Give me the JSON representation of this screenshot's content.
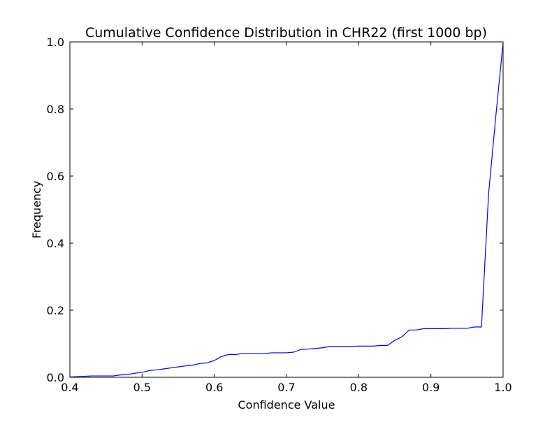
{
  "chart_data": {
    "type": "line",
    "title": "Cumulative Confidence Distribution in CHR22 (first 1000 bp)",
    "xlabel": "Confidence Value",
    "ylabel": "Frequency",
    "xlim": [
      0.4,
      1.0
    ],
    "ylim": [
      0.0,
      1.0
    ],
    "x_ticks": [
      "0.4",
      "0.5",
      "0.6",
      "0.7",
      "0.8",
      "0.9",
      "1.0"
    ],
    "y_ticks": [
      "0.0",
      "0.2",
      "0.4",
      "0.6",
      "0.8",
      "1.0"
    ],
    "grid": false,
    "series": [
      {
        "color": "#0000ff",
        "x": [
          0.4,
          0.41,
          0.42,
          0.43,
          0.44,
          0.45,
          0.46,
          0.47,
          0.48,
          0.49,
          0.5,
          0.51,
          0.52,
          0.53,
          0.54,
          0.55,
          0.56,
          0.57,
          0.58,
          0.59,
          0.6,
          0.61,
          0.62,
          0.63,
          0.64,
          0.65,
          0.66,
          0.67,
          0.68,
          0.69,
          0.7,
          0.71,
          0.72,
          0.73,
          0.74,
          0.75,
          0.76,
          0.77,
          0.78,
          0.79,
          0.8,
          0.81,
          0.82,
          0.83,
          0.84,
          0.85,
          0.86,
          0.87,
          0.88,
          0.89,
          0.9,
          0.91,
          0.92,
          0.93,
          0.94,
          0.95,
          0.96,
          0.97,
          0.98,
          0.99,
          1.0
        ],
        "y": [
          0.001,
          0.002,
          0.003,
          0.004,
          0.004,
          0.004,
          0.004,
          0.007,
          0.008,
          0.012,
          0.015,
          0.02,
          0.022,
          0.025,
          0.028,
          0.031,
          0.034,
          0.036,
          0.041,
          0.043,
          0.05,
          0.062,
          0.068,
          0.068,
          0.071,
          0.071,
          0.071,
          0.071,
          0.073,
          0.073,
          0.073,
          0.075,
          0.083,
          0.084,
          0.086,
          0.088,
          0.092,
          0.092,
          0.092,
          0.092,
          0.093,
          0.093,
          0.093,
          0.095,
          0.095,
          0.11,
          0.121,
          0.141,
          0.141,
          0.145,
          0.145,
          0.145,
          0.145,
          0.146,
          0.146,
          0.146,
          0.15,
          0.15,
          0.55,
          0.78,
          1.0
        ]
      }
    ]
  }
}
